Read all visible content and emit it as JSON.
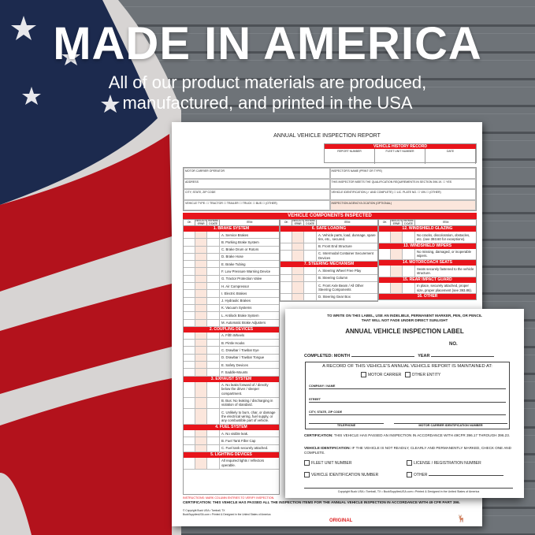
{
  "banner": {
    "title": "MADE IN AMERICA",
    "subtitle_line1": "All of our product materials are produced,",
    "subtitle_line2": "manufactured, and printed in the USA"
  },
  "colors": {
    "red": "#e8141b",
    "flag_blue": "#1c2a4e",
    "wood": "#6b7075"
  },
  "report": {
    "title": "ANNUAL VEHICLE INSPECTION REPORT",
    "history": {
      "header": "VEHICLE HISTORY RECORD",
      "columns": [
        "REPORT NUMBER",
        "FLEET UNIT NUMBER",
        "DATE"
      ]
    },
    "info": [
      "MOTOR CARRIER OPERATOR",
      "INSPECTOR'S NAME (PRINT OR TYPE)",
      "ADDRESS",
      "THIS INSPECTOR MEETS THE QUALIFICATION REQUIREMENTS IN SECTION 396.19.  ☐ YES",
      "CITY, STATE, ZIP CODE",
      "VEHICLE IDENTIFICATION (✓ AND COMPLETE)  ☐ LIC. PLATE NO.  ☐ VIN  ☐ (OTHER)",
      "VEHICLE TYPE:  ☐ TRACTOR  ☐ TRAILER  ☐ TRUCK  ☐ BUS  ☐ (OTHER)",
      "INSPECTION AGENCY/LOCATION (OPTIONAL)"
    ],
    "components_header": "VEHICLE COMPONENTS INSPECTED",
    "col_headers": [
      "OK",
      "NEEDS REPAIR",
      "REPAIRED DATE",
      "ITEM"
    ],
    "columns": [
      [
        {
          "section": "1. BRAKE SYSTEM",
          "items": [
            "A. Service Brakes",
            "B. Parking Brake System",
            "C. Brake Drum or Rotors",
            "D. Brake Hose",
            "E. Brake Tubing",
            "F. Low Pressure Warning Device",
            "G. Tractor Protection Valve",
            "H. Air Compressor",
            "I. Electric Brakes",
            "J. Hydraulic Brakes",
            "K. Vacuum Systems",
            "L. Antilock Brake System",
            "M. Automatic Brake Adjusters"
          ]
        },
        {
          "section": "2. COUPLING DEVICES",
          "items": [
            "A. Fifth Wheels",
            "B. Pintle Hooks",
            "C. Drawbar / Towbar Eye",
            "D. Drawbar / Towbar Tongue",
            "E. Safety Devices",
            "F. Saddle-Mounts"
          ]
        },
        {
          "section": "3. EXHAUST SYSTEM",
          "items": [
            "A. No leaks forward of / directly below the driver / sleeper compartment.",
            "B. Bus: No leaking / discharging in violation of standard.",
            "C. Unlikely to burn, char, or damage the electrical wiring, fuel supply, or any combustible part of vehicle."
          ]
        },
        {
          "section": "4. FUEL SYSTEM",
          "items": [
            "A. No visible leak.",
            "B. Fuel Tank Filler Cap",
            "C. Fuel tank securely attached."
          ]
        },
        {
          "section": "5. LIGHTING DEVICES",
          "items": [
            "All required lights / reflectors operable."
          ]
        }
      ],
      [
        {
          "section": "6. SAFE LOADING",
          "items": [
            "A. Vehicle parts, load, dunnage, spare tire, etc., secured.",
            "B. Front End Structure",
            "C. Intermodal Container Securement Devices"
          ]
        },
        {
          "section": "7. STEERING MECHANISM",
          "items": [
            "A. Steering Wheel Free Play",
            "B. Steering Column",
            "C. Front Axle Beam / All Other Steering Components",
            "D. Steering Gear Box"
          ]
        }
      ],
      [
        {
          "section": "12. WINDSHIELD GLAZING",
          "items": [
            "No cracks, discoloration, obstacles, etc. (see 393.60 for exceptions)."
          ]
        },
        {
          "section": "13. WINDSHIELD WIPERS",
          "items": [
            "No missing, damaged, or inoperable wipers."
          ]
        },
        {
          "section": "14. MOTORCOACH SEATS",
          "items": [
            "Seats securely fastened to the vehicle structure."
          ]
        },
        {
          "section": "15. REAR IMPACT GUARD",
          "items": [
            "In place, securely attached, proper size, proper placement (see 393.86)."
          ]
        },
        {
          "section": "16. OTHER",
          "items": []
        }
      ]
    ],
    "instructions": "INSTRUCTIONS: MARK COLUMN ENTRIES TO VERIFY INSPECTION.",
    "certification": "CERTIFICATION: THIS VEHICLE HAS PASSED ALL THE INSPECTION ITEMS FOR THE ANNUAL VEHICLE INSPECTION IN ACCORDANCE WITH 49 CFR PART 396.",
    "copyright1": "© Copyright Buck USA • Tomball, TX",
    "copyright2": "BuckSuppliesUSA.com • Printed & Designed in the United States of America",
    "copy_type": "ORIGINAL"
  },
  "label": {
    "warning_line1": "TO WRITE ON THIS LABEL, USE AN INDELIBLE, PERMANENT MARKER, PEN, OR PENCIL",
    "warning_line2": "THAT WILL NOT FADE UNDER DIRECT SUNLIGHT",
    "title": "ANNUAL VEHICLE INSPECTION LABEL",
    "no": "NO.",
    "completed_month": "COMPLETED: MONTH",
    "year": "YEAR",
    "record_text": "A RECORD OF THIS VEHICLE'S ANNUAL VEHICLE REPORT IS MAINTAINED AT:",
    "motor_carrier": "MOTOR CARRIER",
    "other_entity": "OTHER ENTITY",
    "company": "COMPANY / NAME",
    "street": "STREET",
    "city": "CITY, STATE, ZIP CODE",
    "telephone": "TELEPHONE",
    "mcid": "MOTOR CARRIER IDENTIFICATION NUMBER",
    "cert_label": "CERTIFICATION:",
    "cert_text": " THIS VEHICLE HAS PASSED AN INSPECTION IN ACCORDANCE WITH 49CFR 396.17 THROUGH 396.23.",
    "vid_label": "VEHICLE IDENTIFICATION:",
    "vid_text": " IF THE VEHICLE IS NOT READILY, CLEARLY AND PERMANENTLY MARKED, CHECK ONE AND COMPLETE.",
    "opt_fleet": "FLEET UNIT NUMBER",
    "opt_license": "LICENSE / REGISTRATION NUMBER",
    "opt_vin": "VEHICLE IDENTIFICATION NUMBER",
    "opt_other": "OTHER",
    "copyright": "Copyright Buck USA • Tomball, TX • BuckSuppliesUSA.com • Printed & Designed in the United States of America"
  }
}
